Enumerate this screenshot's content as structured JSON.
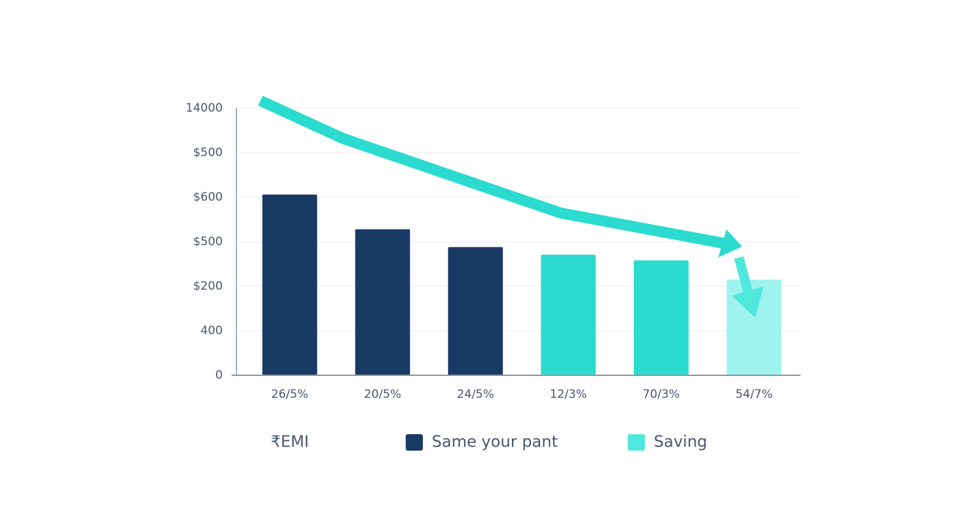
{
  "chart_data": {
    "type": "bar",
    "categories": [
      "26/5%",
      "20/5%",
      "24/5%",
      "12/3%",
      "70/3%",
      "54/7%"
    ],
    "values": [
      4.06,
      3.28,
      2.88,
      2.71,
      2.58,
      2.15
    ],
    "colors": [
      "#1a3a66",
      "#1a3a66",
      "#1a3a66",
      "#2cdbcf",
      "#2cdbcf",
      "#9ff3ee"
    ],
    "ylim": [
      0,
      6
    ],
    "yticks": [
      0,
      {
        "value": 1,
        "label": "400"
      },
      {
        "value": 2,
        "label": "$200"
      },
      {
        "value": 3,
        "label": "$500"
      },
      {
        "value": 4,
        "label": "$600"
      },
      {
        "value": 5,
        "label": "$500"
      },
      {
        "value": 6,
        "label": "14000"
      }
    ],
    "grid": true,
    "legend_note": "₹EMI",
    "legend": [
      {
        "name": "Same your pant",
        "color": "#1a3a66"
      },
      {
        "name": "Saving",
        "color": "#4ee8dd"
      }
    ]
  }
}
